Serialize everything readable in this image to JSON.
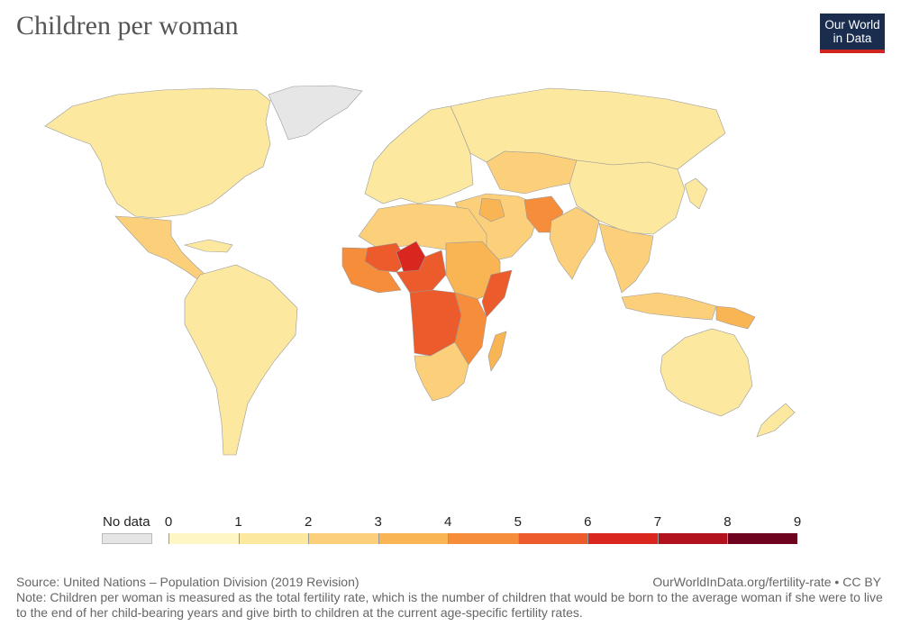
{
  "title": "Children per woman",
  "logo": {
    "line1": "Our World",
    "line2": "in Data"
  },
  "map": {
    "no_data_color": "#e6e6e6",
    "border_color": "#999999",
    "regions": [
      {
        "name": "North America",
        "bin": 1
      },
      {
        "name": "Greenland",
        "bin": "no-data"
      },
      {
        "name": "Mexico & Central America",
        "bin": 2
      },
      {
        "name": "Caribbean",
        "bin": 1
      },
      {
        "name": "South America",
        "bin": 1
      },
      {
        "name": "Europe",
        "bin": 1
      },
      {
        "name": "Russia",
        "bin": 1
      },
      {
        "name": "Central Asia",
        "bin": 2
      },
      {
        "name": "China",
        "bin": 1
      },
      {
        "name": "Middle East",
        "bin": 2
      },
      {
        "name": "Iraq",
        "bin": 3
      },
      {
        "name": "Afghanistan / Pakistan",
        "bin": 4
      },
      {
        "name": "India",
        "bin": 2
      },
      {
        "name": "Southeast Asia",
        "bin": 2
      },
      {
        "name": "Indonesia",
        "bin": 2
      },
      {
        "name": "Papua New Guinea",
        "bin": 3
      },
      {
        "name": "Australia",
        "bin": 1
      },
      {
        "name": "New Zealand",
        "bin": 1
      },
      {
        "name": "North Africa",
        "bin": 2
      },
      {
        "name": "West Africa",
        "bin": 4
      },
      {
        "name": "Mali",
        "bin": 5
      },
      {
        "name": "Niger",
        "bin": 6
      },
      {
        "name": "Chad / Nigeria",
        "bin": 5
      },
      {
        "name": "Sudan / Ethiopia",
        "bin": 3
      },
      {
        "name": "Somalia",
        "bin": 5
      },
      {
        "name": "Central Africa",
        "bin": 5
      },
      {
        "name": "East Africa",
        "bin": 4
      },
      {
        "name": "Southern Africa",
        "bin": 2
      },
      {
        "name": "Madagascar",
        "bin": 3
      },
      {
        "name": "Japan / Korea",
        "bin": 1
      }
    ]
  },
  "legend": {
    "no_data_label": "No data",
    "ticks": [
      "0",
      "1",
      "2",
      "3",
      "4",
      "5",
      "6",
      "7",
      "8",
      "9"
    ],
    "colors": [
      "#fef6c4",
      "#fde8a0",
      "#fcd07a",
      "#f9b454",
      "#f58d3b",
      "#ec5b2b",
      "#d9261f",
      "#b1121d",
      "#6e0320"
    ]
  },
  "footer": {
    "source": "Source: United Nations – Population Division (2019 Revision)",
    "url": "OurWorldInData.org/fertility-rate • CC BY",
    "note": "Note: Children per woman is measured as the total fertility rate, which is the number of children that would be born to the average woman if she were to live to the end of her child-bearing years and give birth to children at the current age-specific fertility rates."
  }
}
